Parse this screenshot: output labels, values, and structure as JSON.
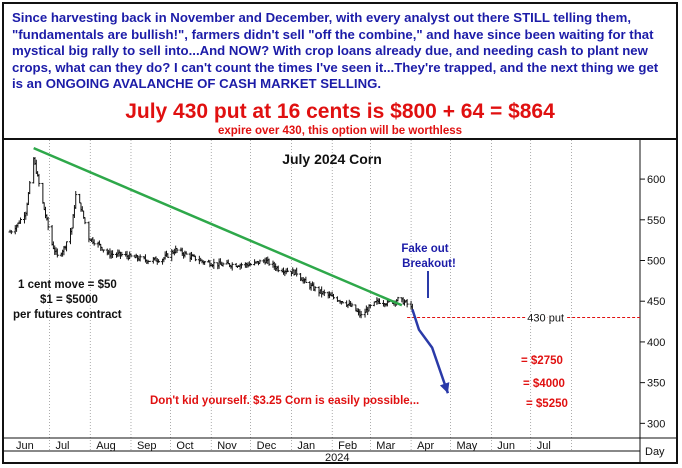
{
  "header": {
    "intro": "Since harvesting back in November and December, with every analyst out there STILL telling them, \"fundamentals are bullish!\", farmers didn't sell \"off the combine,\" and have since been waiting for that mystical big rally to sell into...And NOW? With crop loans already due, and needing cash to plant new crops, what can they do? I can't count the times I've seen it...They're trapped, and the next thing we get is an ONGOING AVALANCHE OF CASH MARKET SELLING.",
    "headline": "July 430 put at 16 cents is $800 + 64 = $864",
    "subline": "expire over 430, this option will be worthless"
  },
  "colors": {
    "header_text": "#1c1ca8",
    "headline": "#e01010",
    "trendline": "#2ea84a",
    "price_bars": "#111111",
    "projection": "#2a3aa8",
    "put_line": "#e01010",
    "annotation_red": "#e01010",
    "annotation_blue": "#1c1ca8"
  },
  "chart_data": {
    "type": "line",
    "title": "July 2024 Corn",
    "chart_style": "OHLC price bars (daily)",
    "y_axis": {
      "position": "right",
      "ticks": [
        300,
        350,
        400,
        450,
        500,
        550,
        600
      ],
      "ylim": [
        282,
        648
      ]
    },
    "x_axis": {
      "unit_label": "Day",
      "year_label": "2024",
      "ticks": [
        "Jun",
        "Jul",
        "Aug",
        "Sep",
        "Oct",
        "Nov",
        "Dec",
        "Jan",
        "Feb",
        "Mar",
        "Apr",
        "May",
        "Jun",
        "Jul"
      ]
    },
    "grid": "vertical dotted at month boundaries",
    "series": [
      {
        "values_kind": "daily close (approx.)",
        "x": [
          "2023-06-01",
          "2023-06-07",
          "2023-06-13",
          "2023-06-19",
          "2023-06-21",
          "2023-06-26",
          "2023-07-03",
          "2023-07-07",
          "2023-07-12",
          "2023-07-18",
          "2023-07-21",
          "2023-07-25",
          "2023-07-31",
          "2023-08-07",
          "2023-08-15",
          "2023-08-25",
          "2023-09-05",
          "2023-09-15",
          "2023-09-25",
          "2023-10-05",
          "2023-10-16",
          "2023-10-27",
          "2023-11-08",
          "2023-11-20",
          "2023-12-01",
          "2023-12-12",
          "2023-12-22",
          "2024-01-05",
          "2024-01-12",
          "2024-01-22",
          "2024-02-01",
          "2024-02-09",
          "2024-02-16",
          "2024-02-23",
          "2024-02-29",
          "2024-03-07",
          "2024-03-15",
          "2024-03-22",
          "2024-03-28",
          "2024-04-02"
        ],
        "y": [
          535,
          545,
          560,
          625,
          610,
          570,
          520,
          505,
          515,
          540,
          580,
          565,
          528,
          520,
          508,
          507,
          503,
          500,
          502,
          513,
          505,
          498,
          495,
          495,
          495,
          500,
          490,
          485,
          472,
          462,
          455,
          450,
          443,
          432,
          442,
          450,
          448,
          452,
          448,
          440
        ]
      }
    ],
    "trendline": {
      "name": "downtrend",
      "points": [
        [
          "2023-06-19",
          638
        ],
        [
          "2024-03-25",
          445
        ]
      ]
    },
    "projection": {
      "name": "projected decline",
      "points": [
        [
          "2024-04-02",
          440
        ],
        [
          "2024-04-07",
          415
        ],
        [
          "2024-04-17",
          393
        ],
        [
          "2024-04-29",
          337
        ]
      ]
    },
    "put_line": {
      "value": 430,
      "label": "430 put"
    },
    "annotations": {
      "contract_line1": "1 cent move = $50",
      "contract_line2": "$1 = $5000",
      "contract_line3": "per futures contract",
      "fakeout_line1": "Fake out",
      "fakeout_line2": "Breakout!",
      "loss_1": "= $2750",
      "loss_2": "= $4000",
      "loss_3": "= $5250",
      "warning": "Don't kid yourself. $3.25 Corn is easily possible..."
    }
  }
}
